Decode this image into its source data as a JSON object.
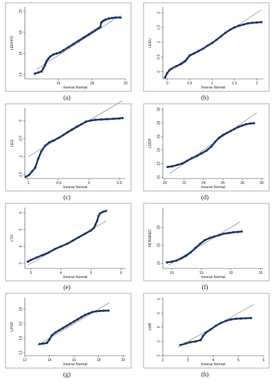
{
  "figure": {
    "panel_labels": [
      "(a)",
      "(b)",
      "(c)",
      "(d)",
      "(e)",
      "(f)",
      "(g)",
      "(h)"
    ],
    "frame_color": "#9a9a9a",
    "point_color": "#1f3a6b",
    "line_color": "#7a7a7a"
  },
  "chart_data": [
    {
      "type": "scatter",
      "ylabel": "LEFPPO",
      "xlabel": "Inverse Normal",
      "xticks": [
        16,
        18,
        20
      ],
      "yticks": [
        14,
        16,
        18,
        20
      ],
      "xlim": [
        14,
        20
      ],
      "ylim": [
        13.6,
        20.4
      ],
      "reference_line": [
        [
          14.7,
          14.5
        ],
        [
          19.7,
          19.6
        ]
      ],
      "x": [
        14.6,
        14.8,
        15.0,
        15.1,
        15.2,
        15.25,
        15.3,
        15.4,
        15.5,
        15.7,
        15.9,
        16.1,
        16.3,
        16.6,
        16.9,
        17.2,
        17.5,
        17.8,
        18.0,
        18.2,
        18.4,
        18.5,
        18.55,
        18.6,
        18.7,
        18.8,
        19.0,
        19.2,
        19.4,
        19.7
      ],
      "y": [
        14.1,
        14.2,
        14.3,
        14.6,
        14.9,
        15.1,
        15.3,
        15.5,
        15.7,
        15.9,
        16.0,
        16.1,
        16.3,
        16.6,
        16.9,
        17.2,
        17.5,
        17.8,
        18.0,
        18.2,
        18.4,
        18.5,
        18.9,
        19.0,
        19.1,
        19.2,
        19.3,
        19.35,
        19.4,
        19.4
      ]
    },
    {
      "type": "scatter",
      "ylabel": "LEEU",
      "xlabel": "Inverse Normal",
      "xticks": [
        0,
        0.5,
        1,
        1.5,
        2
      ],
      "yticks": [
        0,
        0.5,
        1,
        1.5,
        2
      ],
      "xlim": [
        -0.1,
        2.15
      ],
      "ylim": [
        -0.25,
        2.2
      ],
      "reference_line": [
        [
          0,
          0
        ],
        [
          2.1,
          2.1
        ]
      ],
      "x": [
        -0.05,
        0.0,
        0.05,
        0.1,
        0.2,
        0.3,
        0.4,
        0.45,
        0.5,
        0.6,
        0.7,
        0.8,
        0.9,
        1.0,
        1.1,
        1.2,
        1.3,
        1.4,
        1.5,
        1.6,
        1.7,
        1.8,
        1.9,
        2.0,
        2.1
      ],
      "y": [
        -0.2,
        -0.05,
        0.05,
        0.1,
        0.18,
        0.25,
        0.35,
        0.45,
        0.55,
        0.62,
        0.7,
        0.78,
        0.88,
        0.97,
        1.08,
        1.2,
        1.32,
        1.42,
        1.5,
        1.56,
        1.6,
        1.64,
        1.66,
        1.67,
        1.68
      ]
    },
    {
      "type": "scatter",
      "ylabel": "LEQ",
      "xlabel": "Inverse Normal",
      "xticks": [
        -1,
        -0.5,
        0,
        0.5
      ],
      "yticks": [
        -1.5,
        -1,
        -0.5,
        0
      ],
      "xlim": [
        -1.05,
        0.6
      ],
      "ylim": [
        -1.6,
        0.35
      ],
      "reference_line": [
        [
          -1.0,
          -1.0
        ],
        [
          0.55,
          0.55
        ]
      ],
      "x": [
        -1.03,
        -0.98,
        -0.93,
        -0.88,
        -0.83,
        -0.78,
        -0.72,
        -0.65,
        -0.58,
        -0.5,
        -0.42,
        -0.35,
        -0.28,
        -0.2,
        -0.12,
        -0.05,
        0.02,
        0.1,
        0.2,
        0.3,
        0.4,
        0.5,
        0.55
      ],
      "y": [
        -1.55,
        -1.5,
        -1.4,
        -1.3,
        -1.05,
        -0.85,
        -0.7,
        -0.6,
        -0.55,
        -0.48,
        -0.4,
        -0.32,
        -0.25,
        -0.17,
        -0.1,
        -0.03,
        0.0,
        0.02,
        0.03,
        0.04,
        0.05,
        0.06,
        0.07
      ]
    },
    {
      "type": "scatter",
      "ylabel": "LGDP",
      "xlabel": "Inverse Normal",
      "xticks": [
        20,
        22,
        24,
        26,
        28,
        30
      ],
      "yticks": [
        20,
        22,
        24,
        26,
        28,
        30
      ],
      "xlim": [
        19.8,
        30.2
      ],
      "ylim": [
        19.8,
        30.2
      ],
      "reference_line": [
        [
          20.5,
          20.5
        ],
        [
          29.5,
          29.5
        ]
      ],
      "x": [
        20.3,
        20.8,
        21.3,
        21.8,
        22.3,
        22.8,
        23.3,
        23.8,
        24.3,
        24.8,
        25.2,
        25.6,
        26.0,
        26.4,
        26.8,
        27.2,
        27.6,
        28.0,
        28.4,
        28.8,
        29.2
      ],
      "y": [
        21.5,
        21.6,
        21.8,
        22.0,
        22.4,
        22.8,
        23.1,
        23.5,
        23.9,
        24.5,
        25.2,
        25.8,
        26.2,
        26.5,
        26.8,
        27.1,
        27.4,
        27.6,
        27.8,
        27.9,
        27.95
      ]
    },
    {
      "type": "scatter",
      "ylabel": "LTO",
      "xlabel": "Inverse Normal",
      "xticks": [
        3,
        4,
        5,
        6
      ],
      "yticks": [
        3,
        4,
        5,
        6
      ],
      "xlim": [
        2.8,
        6.15
      ],
      "ylim": [
        2.7,
        6.3
      ],
      "reference_line": [
        [
          2.9,
          2.9
        ],
        [
          5.5,
          5.5
        ]
      ],
      "x": [
        2.9,
        3.0,
        3.2,
        3.4,
        3.6,
        3.8,
        4.0,
        4.2,
        4.4,
        4.6,
        4.8,
        5.0,
        5.1,
        5.15,
        5.2,
        5.25,
        5.3,
        5.4,
        5.5
      ],
      "y": [
        3.1,
        3.2,
        3.35,
        3.5,
        3.65,
        3.85,
        4.0,
        4.15,
        4.35,
        4.55,
        4.75,
        4.95,
        5.1,
        5.3,
        5.5,
        5.8,
        5.95,
        6.05,
        6.1
      ]
    },
    {
      "type": "scatter",
      "ylabel": "NCRAREC",
      "xlabel": "Inverse Normal",
      "xticks": [
        10,
        15,
        20,
        25
      ],
      "yticks": [
        10,
        15,
        20
      ],
      "xlim": [
        8.5,
        25.5
      ],
      "ylim": [
        8.5,
        25.5
      ],
      "reference_line": [
        [
          9.5,
          9.5
        ],
        [
          21.5,
          21.5
        ]
      ],
      "x": [
        9.2,
        10.0,
        10.8,
        11.6,
        12.4,
        13.2,
        14.0,
        14.8,
        15.6,
        16.4,
        17.2,
        18.0,
        18.8,
        19.6,
        20.4,
        21.2,
        21.8
      ],
      "y": [
        10.2,
        10.4,
        10.7,
        11.3,
        12.0,
        13.0,
        14.2,
        15.4,
        16.4,
        17.0,
        17.4,
        17.8,
        18.2,
        18.4,
        18.6,
        18.7,
        18.8
      ]
    },
    {
      "type": "scatter",
      "ylabel": "LPOP",
      "xlabel": "Inverse Normal",
      "xticks": [
        12,
        14,
        16,
        18,
        20
      ],
      "yticks": [
        12,
        14,
        16,
        18
      ],
      "xlim": [
        12,
        20.2
      ],
      "ylim": [
        11.6,
        19.6
      ],
      "reference_line": [
        [
          13.0,
          13.0
        ],
        [
          18.9,
          18.9
        ]
      ],
      "x": [
        13.2,
        13.5,
        13.8,
        14.0,
        14.2,
        14.5,
        14.8,
        15.1,
        15.4,
        15.7,
        16.0,
        16.3,
        16.6,
        16.9,
        17.2,
        17.5,
        17.8,
        18.1,
        18.4,
        18.8
      ],
      "y": [
        13.2,
        13.25,
        13.35,
        13.8,
        14.4,
        14.8,
        15.1,
        15.4,
        15.7,
        16.0,
        16.3,
        16.6,
        16.9,
        17.2,
        17.4,
        17.6,
        17.7,
        17.75,
        17.78,
        17.8
      ]
    },
    {
      "type": "scatter",
      "ylabel": "LWB",
      "xlabel": "Inverse Normal",
      "xticks": [
        2,
        3,
        4,
        5,
        6
      ],
      "yticks": [
        2,
        3,
        4,
        5,
        6
      ],
      "xlim": [
        2.0,
        6.0
      ],
      "ylim": [
        2.0,
        6.1
      ],
      "reference_line": [
        [
          2.6,
          2.6
        ],
        [
          5.6,
          5.6
        ]
      ],
      "x": [
        2.7,
        2.9,
        3.1,
        3.3,
        3.5,
        3.6,
        3.7,
        3.9,
        4.1,
        4.3,
        4.5,
        4.7,
        4.9,
        5.1,
        5.3,
        5.5
      ],
      "y": [
        2.75,
        2.85,
        2.95,
        3.0,
        3.1,
        3.4,
        3.6,
        3.85,
        4.1,
        4.3,
        4.45,
        4.55,
        4.6,
        4.62,
        4.64,
        4.65
      ]
    }
  ]
}
